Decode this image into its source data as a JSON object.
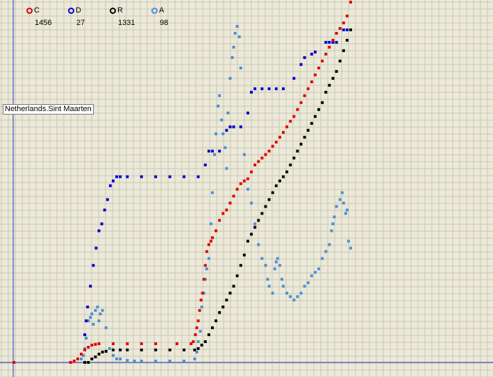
{
  "chart_data": {
    "type": "scatter",
    "region_label": "Netherlands.Sint Maarten",
    "grid": true,
    "x_axis_position": "bottom",
    "y_axis_position": "left",
    "legend_position": "top-left",
    "colors": {
      "background": "#ece9d8",
      "grid": "#c8c8b8",
      "axis": "#1f2fbf"
    },
    "series": [
      {
        "name": "C",
        "count": "1456",
        "color": "#e00000",
        "points": [
          [
            0,
            0
          ],
          [
            80,
            0
          ],
          [
            85,
            2
          ],
          [
            90,
            5
          ],
          [
            95,
            12
          ],
          [
            100,
            18
          ],
          [
            105,
            22
          ],
          [
            110,
            25
          ],
          [
            115,
            26
          ],
          [
            120,
            27
          ],
          [
            140,
            27
          ],
          [
            160,
            27
          ],
          [
            180,
            27
          ],
          [
            200,
            27
          ],
          [
            230,
            27
          ],
          [
            250,
            27
          ],
          [
            253,
            30
          ],
          [
            256,
            40
          ],
          [
            258,
            50
          ],
          [
            260,
            60
          ],
          [
            262,
            75
          ],
          [
            264,
            90
          ],
          [
            266,
            100
          ],
          [
            268,
            120
          ],
          [
            270,
            140
          ],
          [
            272,
            160
          ],
          [
            275,
            170
          ],
          [
            278,
            175
          ],
          [
            280,
            180
          ],
          [
            285,
            190
          ],
          [
            290,
            205
          ],
          [
            295,
            215
          ],
          [
            300,
            220
          ],
          [
            305,
            230
          ],
          [
            310,
            240
          ],
          [
            315,
            250
          ],
          [
            320,
            258
          ],
          [
            325,
            262
          ],
          [
            330,
            265
          ],
          [
            335,
            275
          ],
          [
            340,
            285
          ],
          [
            345,
            290
          ],
          [
            350,
            295
          ],
          [
            355,
            300
          ],
          [
            360,
            305
          ],
          [
            365,
            312
          ],
          [
            370,
            318
          ],
          [
            375,
            325
          ],
          [
            380,
            332
          ],
          [
            385,
            340
          ],
          [
            390,
            348
          ],
          [
            395,
            355
          ],
          [
            400,
            365
          ],
          [
            405,
            375
          ],
          [
            410,
            385
          ],
          [
            415,
            395
          ],
          [
            420,
            405
          ],
          [
            425,
            415
          ],
          [
            430,
            425
          ],
          [
            435,
            435
          ],
          [
            440,
            445
          ],
          [
            445,
            455
          ],
          [
            450,
            465
          ],
          [
            455,
            475
          ],
          [
            460,
            482
          ],
          [
            465,
            490
          ],
          [
            470,
            500
          ],
          [
            475,
            520
          ]
        ]
      },
      {
        "name": "D",
        "count": "27",
        "color": "#0000cc",
        "points": [
          [
            100,
            40
          ],
          [
            102,
            60
          ],
          [
            104,
            80
          ],
          [
            108,
            110
          ],
          [
            112,
            140
          ],
          [
            116,
            165
          ],
          [
            120,
            190
          ],
          [
            124,
            200
          ],
          [
            128,
            220
          ],
          [
            132,
            235
          ],
          [
            136,
            255
          ],
          [
            140,
            262
          ],
          [
            145,
            268
          ],
          [
            150,
            268
          ],
          [
            160,
            268
          ],
          [
            180,
            268
          ],
          [
            200,
            268
          ],
          [
            220,
            268
          ],
          [
            240,
            268
          ],
          [
            260,
            268
          ],
          [
            270,
            285
          ],
          [
            275,
            305
          ],
          [
            280,
            305
          ],
          [
            290,
            305
          ],
          [
            300,
            335
          ],
          [
            305,
            340
          ],
          [
            310,
            340
          ],
          [
            320,
            340
          ],
          [
            330,
            360
          ],
          [
            335,
            390
          ],
          [
            340,
            395
          ],
          [
            350,
            395
          ],
          [
            360,
            395
          ],
          [
            370,
            395
          ],
          [
            380,
            395
          ],
          [
            395,
            410
          ],
          [
            405,
            430
          ],
          [
            410,
            440
          ],
          [
            420,
            445
          ],
          [
            425,
            448
          ],
          [
            440,
            462
          ],
          [
            445,
            462
          ],
          [
            450,
            462
          ],
          [
            455,
            462
          ],
          [
            465,
            480
          ],
          [
            470,
            480
          ],
          [
            475,
            480
          ]
        ]
      },
      {
        "name": "R",
        "count": "1331",
        "color": "#000000",
        "points": [
          [
            100,
            0
          ],
          [
            105,
            0
          ],
          [
            110,
            5
          ],
          [
            115,
            8
          ],
          [
            120,
            12
          ],
          [
            125,
            15
          ],
          [
            130,
            16
          ],
          [
            140,
            18
          ],
          [
            150,
            18
          ],
          [
            160,
            18
          ],
          [
            180,
            18
          ],
          [
            200,
            18
          ],
          [
            220,
            18
          ],
          [
            240,
            18
          ],
          [
            255,
            18
          ],
          [
            260,
            20
          ],
          [
            265,
            25
          ],
          [
            270,
            30
          ],
          [
            275,
            40
          ],
          [
            280,
            50
          ],
          [
            285,
            60
          ],
          [
            290,
            72
          ],
          [
            295,
            80
          ],
          [
            300,
            90
          ],
          [
            305,
            100
          ],
          [
            310,
            110
          ],
          [
            315,
            125
          ],
          [
            320,
            140
          ],
          [
            325,
            155
          ],
          [
            330,
            175
          ],
          [
            335,
            185
          ],
          [
            340,
            195
          ],
          [
            345,
            205
          ],
          [
            350,
            215
          ],
          [
            355,
            225
          ],
          [
            360,
            235
          ],
          [
            365,
            245
          ],
          [
            370,
            255
          ],
          [
            375,
            262
          ],
          [
            380,
            268
          ],
          [
            385,
            275
          ],
          [
            390,
            285
          ],
          [
            395,
            295
          ],
          [
            400,
            305
          ],
          [
            405,
            315
          ],
          [
            410,
            325
          ],
          [
            415,
            335
          ],
          [
            420,
            345
          ],
          [
            425,
            355
          ],
          [
            430,
            365
          ],
          [
            435,
            375
          ],
          [
            440,
            390
          ],
          [
            445,
            400
          ],
          [
            450,
            410
          ],
          [
            455,
            420
          ],
          [
            460,
            435
          ],
          [
            465,
            450
          ],
          [
            470,
            465
          ],
          [
            475,
            480
          ]
        ]
      },
      {
        "name": "A",
        "count": "98",
        "color": "#4a8fd6",
        "points": [
          [
            95,
            5
          ],
          [
            98,
            10
          ],
          [
            100,
            20
          ],
          [
            102,
            35
          ],
          [
            105,
            60
          ],
          [
            108,
            65
          ],
          [
            110,
            70
          ],
          [
            112,
            55
          ],
          [
            115,
            75
          ],
          [
            118,
            80
          ],
          [
            120,
            60
          ],
          [
            122,
            70
          ],
          [
            125,
            75
          ],
          [
            130,
            50
          ],
          [
            135,
            20
          ],
          [
            140,
            10
          ],
          [
            145,
            5
          ],
          [
            150,
            5
          ],
          [
            160,
            3
          ],
          [
            170,
            2
          ],
          [
            180,
            2
          ],
          [
            200,
            2
          ],
          [
            220,
            2
          ],
          [
            240,
            2
          ],
          [
            255,
            5
          ],
          [
            258,
            15
          ],
          [
            260,
            30
          ],
          [
            263,
            45
          ],
          [
            265,
            80
          ],
          [
            268,
            100
          ],
          [
            270,
            120
          ],
          [
            272,
            135
          ],
          [
            275,
            150
          ],
          [
            278,
            200
          ],
          [
            280,
            245
          ],
          [
            283,
            300
          ],
          [
            285,
            330
          ],
          [
            288,
            370
          ],
          [
            290,
            385
          ],
          [
            293,
            350
          ],
          [
            295,
            330
          ],
          [
            298,
            310
          ],
          [
            300,
            280
          ],
          [
            302,
            360
          ],
          [
            305,
            410
          ],
          [
            308,
            440
          ],
          [
            310,
            455
          ],
          [
            312,
            475
          ],
          [
            315,
            485
          ],
          [
            318,
            470
          ],
          [
            320,
            425
          ],
          [
            325,
            300
          ],
          [
            330,
            250
          ],
          [
            335,
            230
          ],
          [
            340,
            200
          ],
          [
            345,
            170
          ],
          [
            350,
            150
          ],
          [
            355,
            140
          ],
          [
            358,
            120
          ],
          [
            360,
            110
          ],
          [
            365,
            100
          ],
          [
            368,
            135
          ],
          [
            370,
            145
          ],
          [
            372,
            150
          ],
          [
            375,
            140
          ],
          [
            378,
            120
          ],
          [
            380,
            110
          ],
          [
            385,
            100
          ],
          [
            390,
            95
          ],
          [
            395,
            90
          ],
          [
            400,
            95
          ],
          [
            405,
            100
          ],
          [
            410,
            110
          ],
          [
            415,
            115
          ],
          [
            420,
            125
          ],
          [
            425,
            130
          ],
          [
            430,
            135
          ],
          [
            435,
            150
          ],
          [
            440,
            160
          ],
          [
            445,
            170
          ],
          [
            448,
            190
          ],
          [
            450,
            200
          ],
          [
            452,
            210
          ],
          [
            455,
            225
          ],
          [
            460,
            235
          ],
          [
            463,
            245
          ],
          [
            465,
            230
          ],
          [
            468,
            215
          ],
          [
            470,
            220
          ],
          [
            472,
            175
          ],
          [
            475,
            165
          ]
        ]
      }
    ]
  }
}
